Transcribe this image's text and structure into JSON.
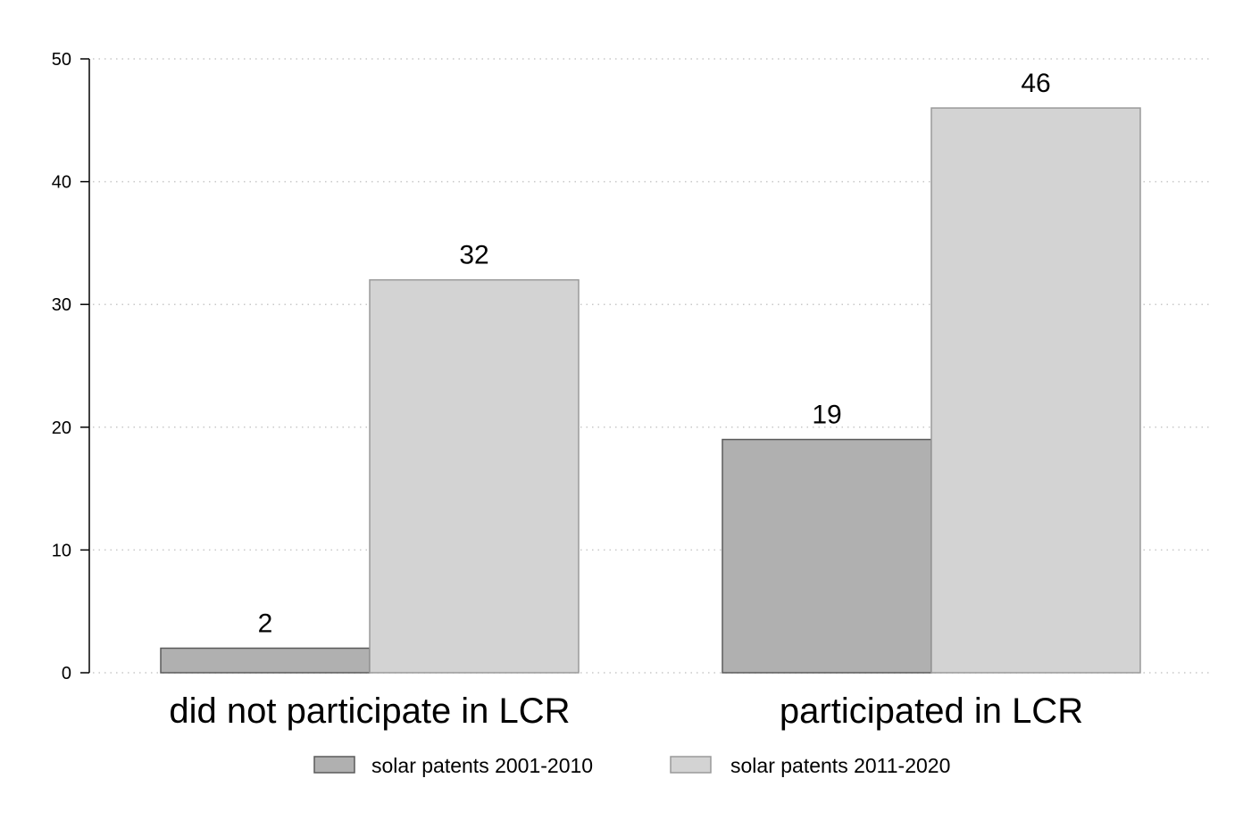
{
  "chart_data": {
    "type": "bar",
    "categories": [
      "did not participate in LCR",
      "participated in LCR"
    ],
    "series": [
      {
        "name": "solar patents 2001-2010",
        "values": [
          2,
          19
        ],
        "color": "#b0b0b0",
        "stroke": "#5a5a5a"
      },
      {
        "name": "solar patents 2011-2020",
        "values": [
          32,
          46
        ],
        "color": "#d3d3d3",
        "stroke": "#9a9a9a"
      }
    ],
    "data_labels": true,
    "title": "",
    "xlabel": "",
    "ylabel": "",
    "ylim": [
      0,
      50
    ],
    "yticks": [
      0,
      10,
      20,
      30,
      40,
      50
    ],
    "grid": "horizontal-dotted",
    "legend_position": "bottom"
  }
}
